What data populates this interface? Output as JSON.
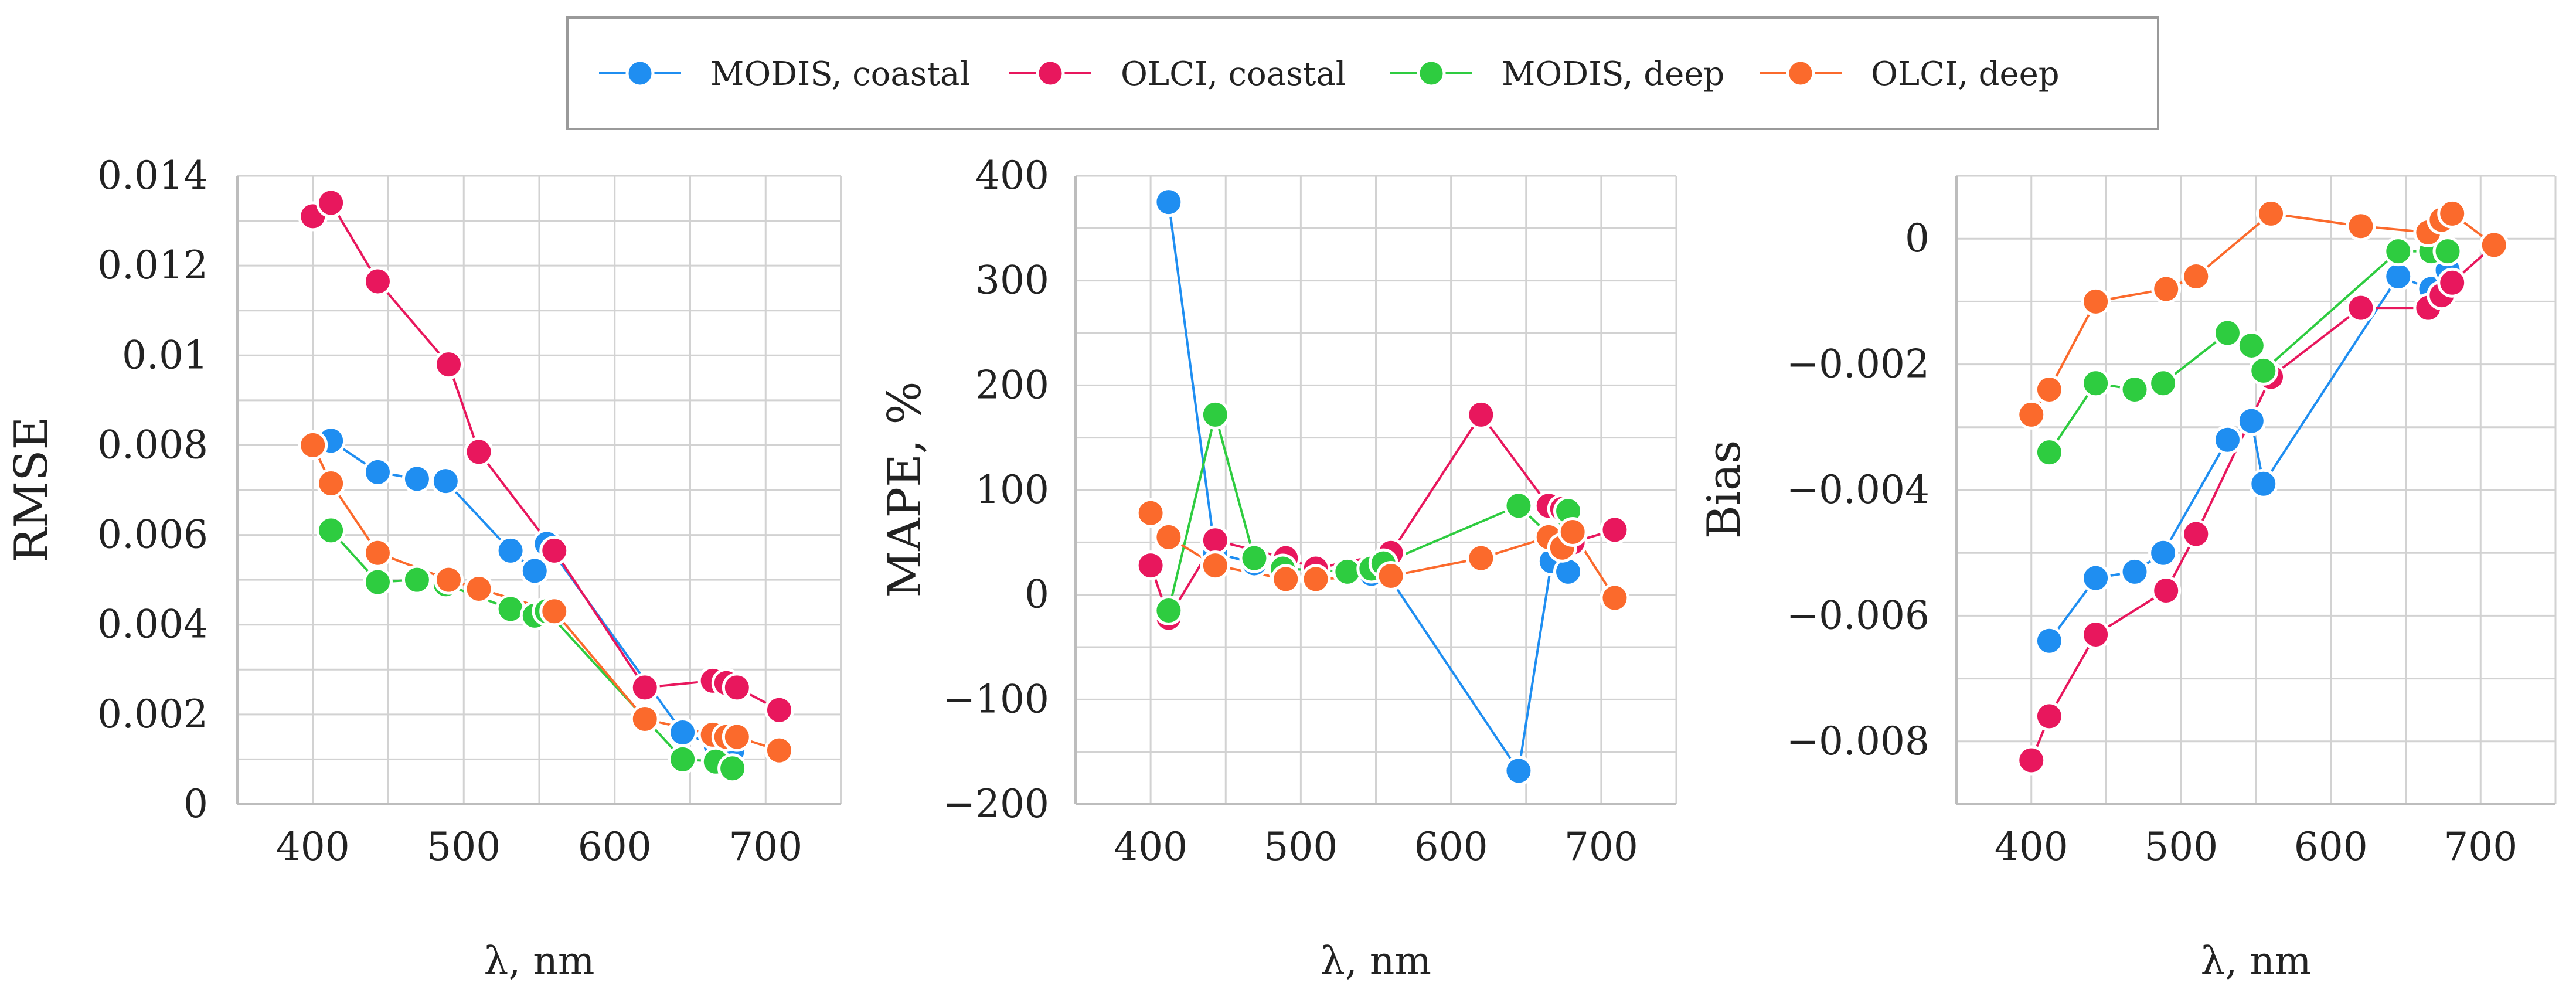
{
  "chart_data": [
    {
      "type": "line",
      "ylabel": "RMSE",
      "xlabel": "λ, nm",
      "xlim": [
        350,
        750
      ],
      "ylim": [
        0,
        0.014
      ],
      "xticks": [
        400,
        500,
        600,
        700
      ],
      "xtick_labels": [
        "400",
        "500",
        "600",
        "700"
      ],
      "yticks": [
        0,
        0.002,
        0.004,
        0.006,
        0.008,
        0.01,
        0.012,
        0.014
      ],
      "ytick_labels": [
        "0",
        "0.002",
        "0.004",
        "0.006",
        "0.008",
        "0.01",
        "0.012",
        "0.014"
      ],
      "grid": true,
      "series": [
        {
          "name": "MODIS, coastal",
          "color": "#1f8ef1",
          "x": [
            412,
            443,
            469,
            488,
            531,
            547,
            555,
            645,
            667,
            678
          ],
          "y": [
            0.0081,
            0.0074,
            0.00725,
            0.0072,
            0.00565,
            0.0052,
            0.0058,
            0.0016,
            0.0013,
            0.0012
          ]
        },
        {
          "name": "OLCI, coastal",
          "color": "#e8175d",
          "x": [
            400,
            412,
            443,
            490,
            510,
            560,
            620,
            665,
            674,
            681,
            709
          ],
          "y": [
            0.0131,
            0.0134,
            0.01165,
            0.0098,
            0.00785,
            0.00565,
            0.0026,
            0.00275,
            0.0027,
            0.0026,
            0.0021
          ]
        },
        {
          "name": "MODIS, deep",
          "color": "#2ecc40",
          "x": [
            412,
            443,
            469,
            488,
            531,
            547,
            555,
            645,
            667,
            678
          ],
          "y": [
            0.0061,
            0.00495,
            0.005,
            0.0049,
            0.00435,
            0.0042,
            0.0043,
            0.001,
            0.00095,
            0.0008
          ]
        },
        {
          "name": "OLCI, deep",
          "color": "#fb6a2c",
          "x": [
            400,
            412,
            443,
            490,
            510,
            560,
            620,
            665,
            674,
            681,
            709
          ],
          "y": [
            0.008,
            0.00715,
            0.0056,
            0.005,
            0.0048,
            0.0043,
            0.0019,
            0.00155,
            0.0015,
            0.0015,
            0.0012
          ]
        }
      ]
    },
    {
      "type": "line",
      "ylabel": "MAPE, %",
      "xlabel": "λ, nm",
      "xlim": [
        350,
        750
      ],
      "ylim": [
        -200,
        400
      ],
      "xticks": [
        400,
        500,
        600,
        700
      ],
      "xtick_labels": [
        "400",
        "500",
        "600",
        "700"
      ],
      "yticks": [
        -200,
        -100,
        0,
        100,
        200,
        300,
        400
      ],
      "ytick_labels": [
        "−200",
        "−100",
        "0",
        "100",
        "200",
        "300",
        "400"
      ],
      "grid": true,
      "series": [
        {
          "name": "MODIS, coastal",
          "color": "#1f8ef1",
          "x": [
            412,
            443,
            469,
            488,
            531,
            547,
            555,
            645,
            667,
            678
          ],
          "y": [
            375,
            40,
            30,
            25,
            22,
            20,
            25,
            -168,
            32,
            22
          ]
        },
        {
          "name": "OLCI, coastal",
          "color": "#e8175d",
          "x": [
            400,
            412,
            443,
            490,
            510,
            560,
            620,
            665,
            674,
            681,
            709
          ],
          "y": [
            28,
            -22,
            52,
            35,
            25,
            40,
            172,
            85,
            82,
            50,
            62
          ]
        },
        {
          "name": "MODIS, deep",
          "color": "#2ecc40",
          "x": [
            412,
            443,
            469,
            488,
            531,
            547,
            555,
            645,
            667,
            678
          ],
          "y": [
            -15,
            172,
            35,
            25,
            22,
            25,
            30,
            85,
            55,
            80
          ]
        },
        {
          "name": "OLCI, deep",
          "color": "#fb6a2c",
          "x": [
            400,
            412,
            443,
            490,
            510,
            560,
            620,
            665,
            674,
            681,
            709
          ],
          "y": [
            78,
            55,
            28,
            15,
            15,
            18,
            35,
            55,
            45,
            60,
            -3
          ]
        }
      ]
    },
    {
      "type": "line",
      "ylabel": "Bias",
      "xlabel": "λ, nm",
      "xlim": [
        350,
        750
      ],
      "ylim": [
        -0.009,
        0.001
      ],
      "xticks": [
        400,
        500,
        600,
        700
      ],
      "xtick_labels": [
        "400",
        "500",
        "600",
        "700"
      ],
      "yticks": [
        -0.008,
        -0.006,
        -0.004,
        -0.002,
        0
      ],
      "ytick_labels": [
        "−0.008",
        "−0.006",
        "−0.004",
        "−0.002",
        "0"
      ],
      "grid": true,
      "series": [
        {
          "name": "MODIS, coastal",
          "color": "#1f8ef1",
          "x": [
            412,
            443,
            469,
            488,
            531,
            547,
            555,
            645,
            667,
            678
          ],
          "y": [
            -0.0064,
            -0.0054,
            -0.0053,
            -0.005,
            -0.0032,
            -0.0029,
            -0.0039,
            -0.0006,
            -0.0008,
            -0.0005
          ]
        },
        {
          "name": "OLCI, coastal",
          "color": "#e8175d",
          "x": [
            400,
            412,
            443,
            490,
            510,
            560,
            620,
            665,
            674,
            681,
            709
          ],
          "y": [
            -0.0083,
            -0.0076,
            -0.0063,
            -0.0056,
            -0.0047,
            -0.0022,
            -0.0011,
            -0.0011,
            -0.0009,
            -0.0007,
            -0.0001
          ]
        },
        {
          "name": "MODIS, deep",
          "color": "#2ecc40",
          "x": [
            412,
            443,
            469,
            488,
            531,
            547,
            555,
            645,
            667,
            678
          ],
          "y": [
            -0.0034,
            -0.0023,
            -0.0024,
            -0.0023,
            -0.0015,
            -0.0017,
            -0.0021,
            -0.0002,
            -0.0002,
            -0.0002
          ]
        },
        {
          "name": "OLCI, deep",
          "color": "#fb6a2c",
          "x": [
            400,
            412,
            443,
            490,
            510,
            560,
            620,
            665,
            674,
            681,
            709
          ],
          "y": [
            -0.0028,
            -0.0024,
            -0.001,
            -0.0008,
            -0.0006,
            0.0004,
            0.0002,
            0.0001,
            0.0003,
            0.0004,
            -0.0001
          ]
        }
      ]
    }
  ],
  "legend": {
    "position": "top-center",
    "entries": [
      {
        "label": "MODIS, coastal",
        "color": "#1f8ef1"
      },
      {
        "label": "OLCI, coastal",
        "color": "#e8175d"
      },
      {
        "label": "MODIS, deep",
        "color": "#2ecc40"
      },
      {
        "label": "OLCI, deep",
        "color": "#fb6a2c"
      }
    ]
  }
}
